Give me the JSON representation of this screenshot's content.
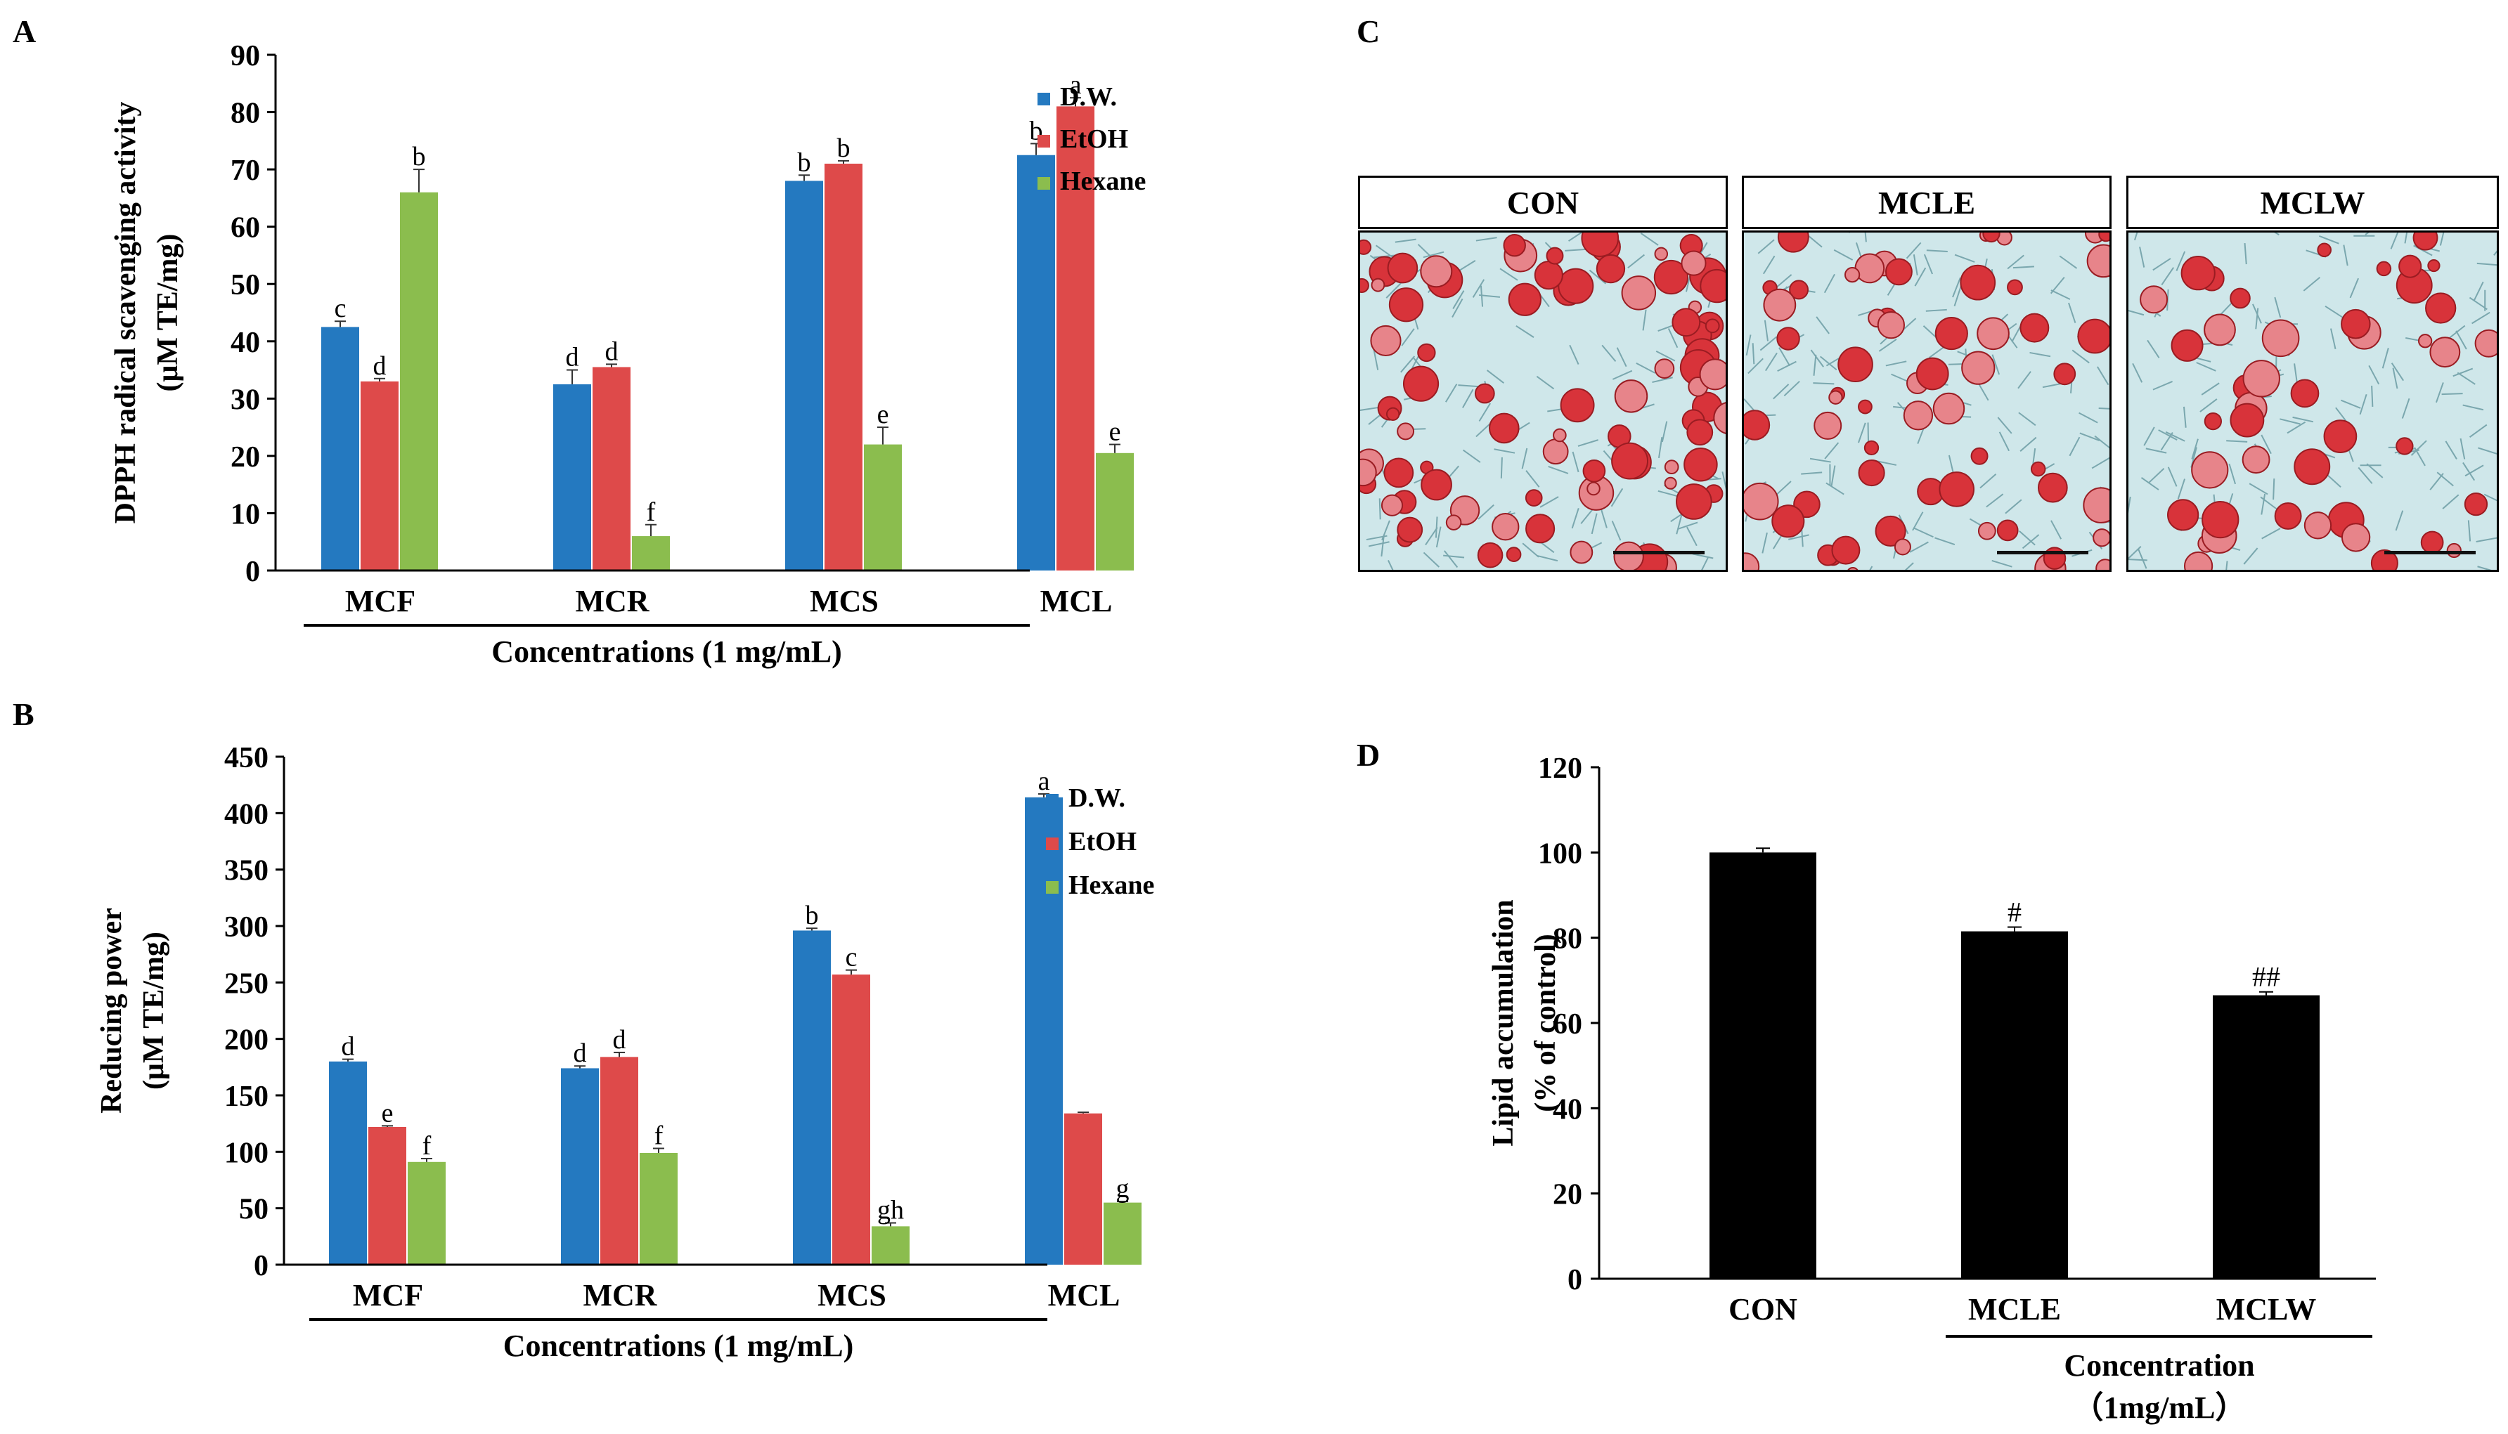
{
  "panels": {
    "A": "A",
    "B": "B",
    "C": "C",
    "D": "D"
  },
  "colors": {
    "dw": "#2479c0",
    "etoh": "#de4a4a",
    "hexane": "#8bbd4e",
    "black": "#000000"
  },
  "chart_data": [
    {
      "panel": "A",
      "type": "bar",
      "categories": [
        "MCF",
        "MCR",
        "MCS",
        "MCL"
      ],
      "series": [
        {
          "name": "D.W.",
          "values": [
            42.5,
            32.5,
            68,
            72.5
          ],
          "errors": [
            1,
            2.5,
            1,
            2
          ],
          "letters": [
            "c",
            "d",
            "b",
            "b"
          ]
        },
        {
          "name": "EtOH",
          "values": [
            33,
            35.5,
            71,
            81
          ],
          "errors": [
            0.5,
            0.5,
            0.5,
            1.5
          ],
          "letters": [
            "d",
            "d",
            "b",
            "a"
          ]
        },
        {
          "name": "Hexane",
          "values": [
            66,
            6,
            22,
            20.5
          ],
          "errors": [
            4,
            2,
            3,
            1.5
          ],
          "letters": [
            "b",
            "f",
            "e",
            "e"
          ]
        }
      ],
      "ylabel": "DPPH radical scavenging activity",
      "ylabel2": "(μM TE/mg)",
      "xlabel": "Concentrations (1 mg/mL)",
      "ylim": [
        0,
        90
      ],
      "yticks": [
        "0",
        "10",
        "20",
        "30",
        "40",
        "50",
        "60",
        "70",
        "80",
        "90"
      ],
      "legend": "top-right"
    },
    {
      "panel": "B",
      "type": "bar",
      "categories": [
        "MCF",
        "MCR",
        "MCS",
        "MCL"
      ],
      "series": [
        {
          "name": "D.W.",
          "values": [
            180,
            174,
            296,
            414
          ],
          "errors": [
            2,
            2,
            2,
            3
          ],
          "letters": [
            "d",
            "d",
            "b",
            "a"
          ]
        },
        {
          "name": "EtOH",
          "values": [
            122,
            184,
            257,
            134
          ],
          "errors": [
            1,
            4,
            4,
            1
          ],
          "letters": [
            "e",
            "d",
            "c",
            ""
          ]
        },
        {
          "name": "Hexane",
          "values": [
            91,
            99,
            34,
            55
          ],
          "errors": [
            3,
            4,
            3,
            1
          ],
          "letters": [
            "f",
            "f",
            "gh",
            "g"
          ]
        }
      ],
      "ylabel": "Reducing power",
      "ylabel2": "(μM TE/mg)",
      "xlabel": "Concentrations (1 mg/mL)",
      "ylim": [
        0,
        450
      ],
      "yticks": [
        "0",
        "50",
        "100",
        "150",
        "200",
        "250",
        "300",
        "350",
        "400",
        "450"
      ],
      "legend": "top-right"
    },
    {
      "panel": "D",
      "type": "bar",
      "categories": [
        "CON",
        "MCLE",
        "MCLW"
      ],
      "values": [
        100,
        81.5,
        66.5
      ],
      "errors": [
        1,
        1,
        0.8
      ],
      "annotations": [
        "",
        "#",
        "##"
      ],
      "ylabel": "Lipid accumulation",
      "ylabel2": "(% of control)",
      "xlabel": "Concentration",
      "xlabel2": "（1mg/mL）",
      "ylim": [
        0,
        120
      ],
      "yticks": [
        "0",
        "20",
        "40",
        "60",
        "80",
        "100",
        "120"
      ],
      "grid": false
    }
  ],
  "micrographs": {
    "labels": [
      "CON",
      "MCLE",
      "MCLW"
    ]
  }
}
